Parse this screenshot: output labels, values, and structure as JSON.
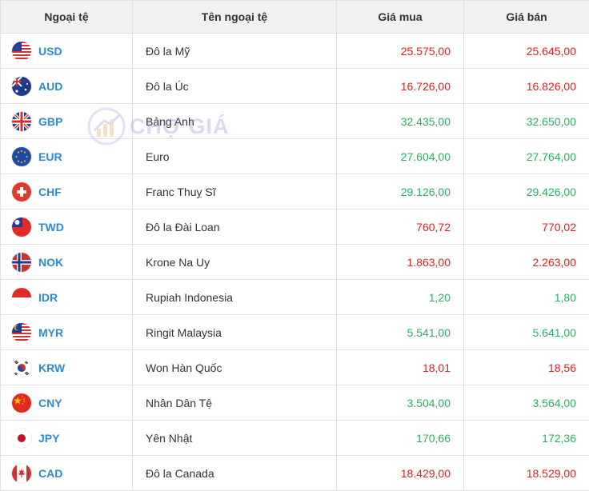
{
  "header": {
    "code": "Ngoại tệ",
    "name": "Tên ngoại tệ",
    "buy": "Giá mua",
    "sell": "Giá bán"
  },
  "watermark": {
    "text": "CHỢ GIÁ"
  },
  "colors": {
    "up": "#e02020",
    "down": "#28b060",
    "code": "#2a8ad8"
  },
  "rows": [
    {
      "code": "USD",
      "name": "Đô la Mỹ",
      "buy": "25.575,00",
      "sell": "25.645,00",
      "color": "red",
      "icon": "us-flag-icon"
    },
    {
      "code": "AUD",
      "name": "Đô la Úc",
      "buy": "16.726,00",
      "sell": "16.826,00",
      "color": "red",
      "icon": "au-flag-icon"
    },
    {
      "code": "GBP",
      "name": "Bảng Anh",
      "buy": "32.435,00",
      "sell": "32.650,00",
      "color": "green",
      "icon": "gb-flag-icon"
    },
    {
      "code": "EUR",
      "name": "Euro",
      "buy": "27.604,00",
      "sell": "27.764,00",
      "color": "green",
      "icon": "eu-flag-icon"
    },
    {
      "code": "CHF",
      "name": "Franc Thuỵ Sĩ",
      "buy": "29.126,00",
      "sell": "29.426,00",
      "color": "green",
      "icon": "ch-flag-icon"
    },
    {
      "code": "TWD",
      "name": "Đô la Đài Loan",
      "buy": "760,72",
      "sell": "770,02",
      "color": "red",
      "icon": "tw-flag-icon"
    },
    {
      "code": "NOK",
      "name": "Krone Na Uy",
      "buy": "1.863,00",
      "sell": "2.263,00",
      "color": "red",
      "icon": "no-flag-icon"
    },
    {
      "code": "IDR",
      "name": "Rupiah Indonesia",
      "buy": "1,20",
      "sell": "1,80",
      "color": "green",
      "icon": "id-flag-icon"
    },
    {
      "code": "MYR",
      "name": "Ringit Malaysia",
      "buy": "5.541,00",
      "sell": "5.641,00",
      "color": "green",
      "icon": "my-flag-icon"
    },
    {
      "code": "KRW",
      "name": "Won Hàn Quốc",
      "buy": "18,01",
      "sell": "18,56",
      "color": "red",
      "icon": "kr-flag-icon"
    },
    {
      "code": "CNY",
      "name": "Nhân Dân Tệ",
      "buy": "3.504,00",
      "sell": "3.564,00",
      "color": "green",
      "icon": "cn-flag-icon"
    },
    {
      "code": "JPY",
      "name": "Yên Nhật",
      "buy": "170,66",
      "sell": "172,36",
      "color": "green",
      "icon": "jp-flag-icon"
    },
    {
      "code": "CAD",
      "name": "Đô la Canada",
      "buy": "18.429,00",
      "sell": "18.529,00",
      "color": "red",
      "icon": "ca-flag-icon"
    }
  ]
}
